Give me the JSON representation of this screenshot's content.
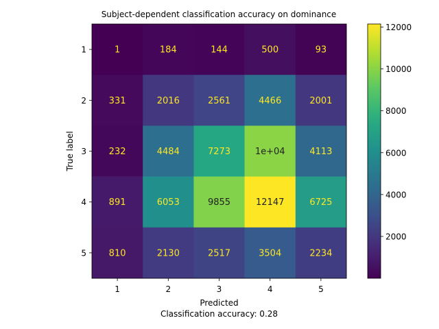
{
  "chart_data": {
    "type": "heatmap",
    "title": "Subject-dependent classification accuracy on dominance",
    "xlabel": "Predicted",
    "ylabel": "True label",
    "caption": "Classification accuracy: 0.28",
    "x_categories": [
      "1",
      "2",
      "3",
      "4",
      "5"
    ],
    "y_categories": [
      "1",
      "2",
      "3",
      "4",
      "5"
    ],
    "values": [
      [
        1,
        184,
        144,
        500,
        93
      ],
      [
        331,
        2016,
        2561,
        4466,
        2001
      ],
      [
        232,
        4484,
        7273,
        10000,
        4113
      ],
      [
        891,
        6053,
        9855,
        12147,
        6725
      ],
      [
        810,
        2130,
        2517,
        3504,
        2234
      ]
    ],
    "cell_labels": [
      [
        "1",
        "184",
        "144",
        "500",
        "93"
      ],
      [
        "331",
        "2016",
        "2561",
        "4466",
        "2001"
      ],
      [
        "232",
        "4484",
        "7273",
        "1e+04",
        "4113"
      ],
      [
        "891",
        "6053",
        "9855",
        "12147",
        "6725"
      ],
      [
        "810",
        "2130",
        "2517",
        "3504",
        "2234"
      ]
    ],
    "colormap": "viridis",
    "colorbar": {
      "min": 1,
      "max": 12147,
      "ticks": [
        2000,
        4000,
        6000,
        8000,
        10000,
        12000
      ]
    },
    "label_colors": {
      "low": "#fde725",
      "high": "#222222"
    }
  }
}
